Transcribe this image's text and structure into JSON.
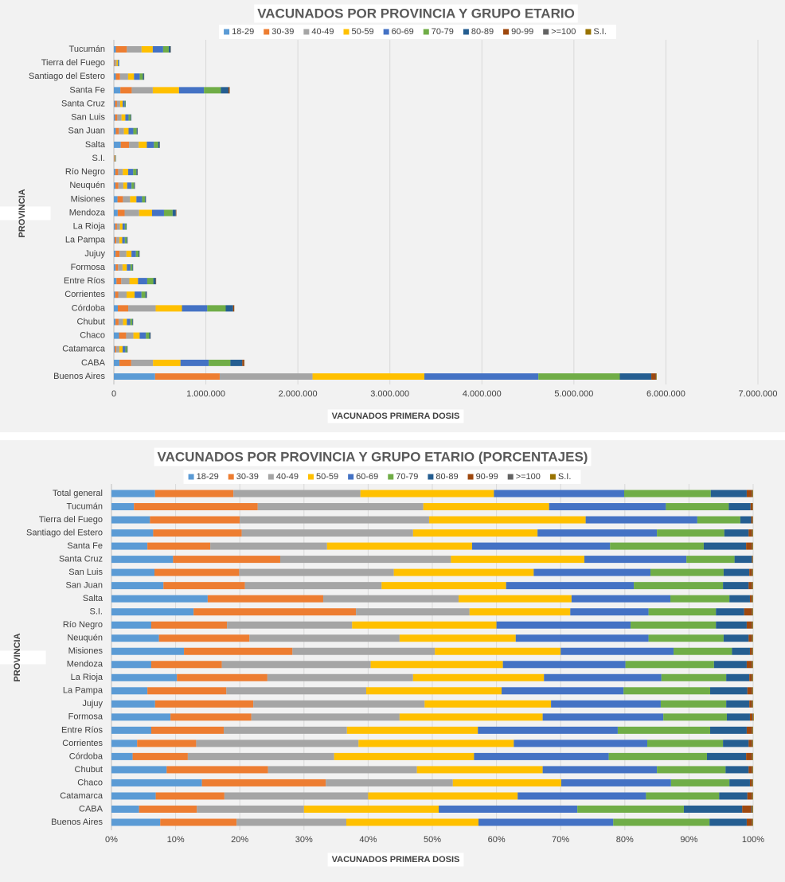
{
  "chart_data": [
    {
      "type": "bar",
      "orientation": "horizontal",
      "stacked": true,
      "grid": true,
      "title": "VACUNADOS POR PROVINCIA Y GRUPO ETARIO",
      "x_label": "VACUNADOS PRIMERA  DOSIS",
      "y_label": "PROVINCIA",
      "categories": [
        "Tucumán",
        "Tierra del Fuego",
        "Santiago del Estero",
        "Santa Fe",
        "Santa Cruz",
        "San Luis",
        "San Juan",
        "Salta",
        "S.I.",
        "Río Negro",
        "Neuquén",
        "Misiones",
        "Mendoza",
        "La Rioja",
        "La Pampa",
        "Jujuy",
        "Formosa",
        "Entre Ríos",
        "Corrientes",
        "Córdoba",
        "Chubut",
        "Chaco",
        "Catamarca",
        "CABA",
        "Buenos Aires"
      ],
      "xlim": [
        0,
        7000000
      ],
      "xticks": [
        0,
        {
          "value": 1000000,
          "label": "1.000.000"
        },
        {
          "value": 2000000,
          "label": "2.000.000"
        },
        {
          "value": 3000000,
          "label": "3.000.000"
        },
        {
          "value": 4000000,
          "label": "4.000.000"
        },
        {
          "value": 5000000,
          "label": "5.000.000"
        },
        {
          "value": 6000000,
          "label": "6.000.000"
        },
        {
          "value": 7000000,
          "label": "7.000.000"
        }
      ],
      "series": [
        {
          "name": "18-29",
          "color": "#5b9bd5",
          "values": [
            21700,
            3600,
            21500,
            70600,
            12500,
            12700,
            21100,
            75000,
            3200,
            16100,
            17000,
            39600,
            42200,
            14300,
            8400,
            19000,
            19300,
            28500,
            14400,
            43200,
            18100,
            56400,
            10400,
            61100,
            448400
          ]
        },
        {
          "name": "30-39",
          "color": "#ed7d31",
          "values": [
            119700,
            8400,
            45500,
            123500,
            21700,
            25100,
            33000,
            90000,
            6300,
            30700,
            32400,
            59200,
            74800,
            19700,
            18500,
            42800,
            26500,
            52000,
            33100,
            112700,
            33200,
            77200,
            16100,
            127800,
            702100
          ]
        },
        {
          "name": "40-49",
          "color": "#a5a5a5",
          "values": [
            160000,
            17700,
            88100,
            229300,
            34600,
            45800,
            55400,
            105500,
            4400,
            50700,
            53800,
            77700,
            157800,
            31800,
            32700,
            74800,
            48500,
            88300,
            91100,
            298700,
            48700,
            79200,
            33600,
            237100,
            1008900
          ]
        },
        {
          "name": "50-59",
          "color": "#ffc000",
          "values": [
            121500,
            14600,
            64000,
            284800,
            27000,
            41400,
            50400,
            88000,
            3900,
            58500,
            41600,
            68600,
            140100,
            28600,
            31700,
            55200,
            46800,
            93800,
            87100,
            285600,
            41200,
            67600,
            35000,
            298200,
            1215400
          ]
        },
        {
          "name": "60-69",
          "color": "#4472c4",
          "values": [
            112800,
            10400,
            61400,
            270900,
            20700,
            34600,
            51700,
            77000,
            3100,
            54300,
            47600,
            61600,
            129900,
            25600,
            28500,
            47900,
            39500,
            100300,
            74900,
            275100,
            37400,
            68400,
            30000,
            306700,
            1239000
          ]
        },
        {
          "name": "70-79",
          "color": "#70ad47",
          "values": [
            60800,
            4000,
            34700,
            184000,
            9800,
            21700,
            36100,
            46000,
            2600,
            34600,
            26900,
            31900,
            93800,
            14100,
            20300,
            28600,
            20800,
            66200,
            42500,
            200400,
            22500,
            36400,
            17100,
            235700,
            885000
          ]
        },
        {
          "name": "80-89",
          "color": "#255e91",
          "values": [
            21100,
            1000,
            12500,
            83200,
            3500,
            7600,
            10400,
            16000,
            1100,
            12500,
            9000,
            9800,
            34700,
            5000,
            8700,
            10100,
            7600,
            26200,
            14400,
            79900,
            7600,
            12800,
            6600,
            129200,
            342200
          ]
        },
        {
          "name": "90-99",
          "color": "#9e480e",
          "values": [
            1900,
            100,
            1700,
            11300,
            100,
            800,
            1300,
            1500,
            300,
            2100,
            1200,
            1100,
            5400,
            600,
            1100,
            1100,
            800,
            3700,
            1800,
            11800,
            1100,
            1200,
            1100,
            19900,
            47200
          ]
        },
        {
          "name": ">=100",
          "color": "#636363",
          "values": [
            300,
            30,
            300,
            1300,
            70,
            200,
            300,
            500,
            30,
            300,
            200,
            400,
            700,
            100,
            200,
            300,
            200,
            500,
            400,
            1300,
            200,
            400,
            200,
            2800,
            5900
          ]
        },
        {
          "name": "S.I.",
          "color": "#997300",
          "values": [
            300,
            30,
            300,
            1300,
            70,
            200,
            300,
            500,
            30,
            300,
            200,
            400,
            700,
            100,
            200,
            300,
            200,
            500,
            400,
            1300,
            200,
            400,
            200,
            1400,
            5900
          ]
        }
      ]
    },
    {
      "type": "bar",
      "orientation": "horizontal",
      "stacked": true,
      "grid": true,
      "title": "VACUNADOS POR PROVINCIA Y GRUPO ETARIO (PORCENTAJES)",
      "x_label": "VACUNADOS PRIMERA  DOSIS",
      "y_label": "PROVINCIA",
      "categories": [
        "Total general",
        "Tucumán",
        "Tierra del Fuego",
        "Santiago del Estero",
        "Santa Fe",
        "Santa Cruz",
        "San Luis",
        "San Juan",
        "Salta",
        "S.I.",
        "Río Negro",
        "Neuquén",
        "Misiones",
        "Mendoza",
        "La Rioja",
        "La Pampa",
        "Jujuy",
        "Formosa",
        "Entre Ríos",
        "Corrientes",
        "Córdoba",
        "Chubut",
        "Chaco",
        "Catamarca",
        "CABA",
        "Buenos Aires"
      ],
      "xlim": [
        0,
        100
      ],
      "xticks": [
        {
          "value": 0,
          "label": "0%"
        },
        {
          "value": 10,
          "label": "10%"
        },
        {
          "value": 20,
          "label": "20%"
        },
        {
          "value": 30,
          "label": "30%"
        },
        {
          "value": 40,
          "label": "40%"
        },
        {
          "value": 50,
          "label": "50%"
        },
        {
          "value": 60,
          "label": "60%"
        },
        {
          "value": 70,
          "label": "70%"
        },
        {
          "value": 80,
          "label": "80%"
        },
        {
          "value": 90,
          "label": "90%"
        },
        {
          "value": 100,
          "label": "100%"
        }
      ],
      "series": [
        {
          "name": "18-29",
          "color": "#5b9bd5",
          "values": [
            6.8,
            3.5,
            6.0,
            6.5,
            5.6,
            9.6,
            6.7,
            8.1,
            15.0,
            12.8,
            6.2,
            7.4,
            11.3,
            6.2,
            10.2,
            5.6,
            6.8,
            9.2,
            6.2,
            4.0,
            3.3,
            8.6,
            14.1,
            6.9,
            4.3,
            7.6
          ]
        },
        {
          "name": "30-39",
          "color": "#ed7d31",
          "values": [
            12.2,
            19.3,
            14.0,
            13.8,
            9.8,
            16.7,
            13.2,
            12.7,
            18.0,
            25.3,
            11.8,
            14.1,
            16.9,
            11.0,
            14.1,
            12.3,
            15.3,
            12.6,
            11.3,
            9.2,
            8.6,
            15.8,
            19.3,
            10.7,
            9.0,
            11.9
          ]
        },
        {
          "name": "40-49",
          "color": "#a5a5a5",
          "values": [
            19.8,
            25.8,
            29.5,
            26.7,
            18.2,
            26.6,
            24.1,
            21.3,
            21.1,
            17.7,
            19.5,
            23.4,
            22.2,
            23.2,
            22.7,
            21.8,
            26.7,
            23.1,
            19.2,
            25.3,
            22.8,
            23.2,
            19.8,
            22.4,
            16.7,
            17.1
          ]
        },
        {
          "name": "50-59",
          "color": "#ffc000",
          "values": [
            20.8,
            19.6,
            24.4,
            19.4,
            22.6,
            20.8,
            21.8,
            19.4,
            17.6,
            15.7,
            22.5,
            18.1,
            19.6,
            20.6,
            20.4,
            21.1,
            19.7,
            22.3,
            20.4,
            24.2,
            21.8,
            19.6,
            16.9,
            23.3,
            21.0,
            20.6
          ]
        },
        {
          "name": "60-69",
          "color": "#4472c4",
          "values": [
            20.3,
            18.2,
            17.4,
            18.6,
            21.5,
            15.9,
            18.2,
            19.9,
            15.4,
            12.2,
            20.9,
            20.7,
            17.6,
            19.1,
            18.3,
            19.0,
            17.1,
            18.8,
            21.8,
            20.8,
            21.0,
            17.8,
            17.1,
            20.0,
            21.6,
            21.0
          ]
        },
        {
          "name": "70-79",
          "color": "#70ad47",
          "values": [
            13.5,
            9.8,
            6.7,
            10.5,
            14.6,
            7.5,
            11.4,
            13.9,
            9.2,
            10.5,
            13.3,
            11.7,
            9.1,
            13.8,
            10.1,
            13.5,
            10.2,
            9.9,
            14.4,
            11.8,
            15.3,
            10.7,
            9.1,
            11.4,
            16.6,
            15.0
          ]
        },
        {
          "name": "80-89",
          "color": "#255e91",
          "values": [
            5.6,
            3.4,
            1.7,
            3.8,
            6.6,
            2.7,
            4.0,
            4.0,
            3.2,
            4.4,
            4.8,
            3.9,
            2.8,
            5.1,
            3.6,
            5.8,
            3.6,
            3.6,
            5.7,
            4.0,
            6.1,
            3.6,
            3.2,
            4.4,
            9.1,
            5.8
          ]
        },
        {
          "name": "90-99",
          "color": "#9e480e",
          "values": [
            0.8,
            0.3,
            0.2,
            0.5,
            0.9,
            0.1,
            0.4,
            0.5,
            0.3,
            1.2,
            0.8,
            0.5,
            0.3,
            0.8,
            0.4,
            0.7,
            0.4,
            0.4,
            0.8,
            0.5,
            0.9,
            0.5,
            0.3,
            0.7,
            1.4,
            0.8
          ]
        },
        {
          "name": ">=100",
          "color": "#636363",
          "values": [
            0.1,
            0.05,
            0.05,
            0.1,
            0.1,
            0.05,
            0.1,
            0.1,
            0.1,
            0.1,
            0.1,
            0.1,
            0.1,
            0.1,
            0.1,
            0.1,
            0.1,
            0.1,
            0.1,
            0.1,
            0.1,
            0.1,
            0.1,
            0.1,
            0.2,
            0.1
          ]
        },
        {
          "name": "S.I.",
          "color": "#997300",
          "values": [
            0.1,
            0.05,
            0.05,
            0.1,
            0.1,
            0.05,
            0.1,
            0.1,
            0.1,
            0.1,
            0.1,
            0.1,
            0.1,
            0.1,
            0.1,
            0.1,
            0.1,
            0.1,
            0.1,
            0.1,
            0.1,
            0.1,
            0.1,
            0.1,
            0.1,
            0.1
          ]
        }
      ]
    }
  ]
}
